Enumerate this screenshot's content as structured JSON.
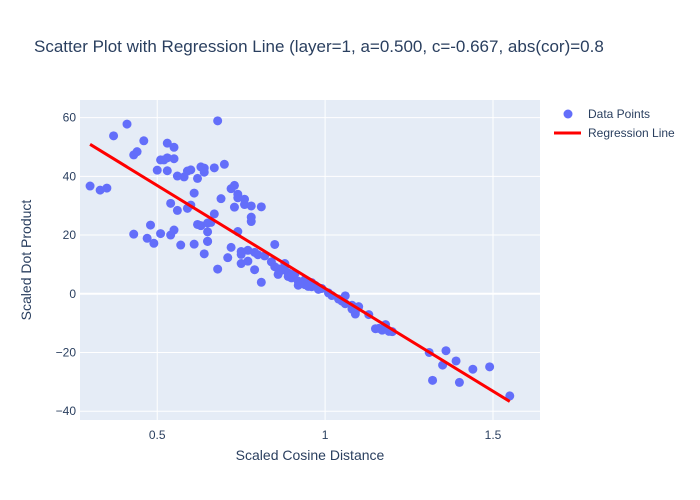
{
  "chart_data": {
    "type": "scatter",
    "title": "Scatter Plot with Regression Line (layer=1, a=0.500, c=-0.667, abs(cor)=0.8",
    "xlabel": "Scaled Cosine Distance",
    "ylabel": "Scaled Dot Product",
    "xlim": [
      0.27,
      1.64
    ],
    "ylim": [
      -43,
      66
    ],
    "xticks": [
      0.5,
      1,
      1.5
    ],
    "xtick_labels": [
      "0.5",
      "1",
      "1.5"
    ],
    "yticks": [
      -40,
      -20,
      0,
      20,
      40,
      60
    ],
    "ytick_labels": [
      "−40",
      "−20",
      "0",
      "20",
      "40",
      "60"
    ],
    "grid": true,
    "legend_position": "top-right",
    "colors": {
      "points": "#636efa",
      "line": "#ff0000",
      "plot_bg": "#e5ecf6",
      "grid": "#ffffff"
    },
    "series": [
      {
        "name": "Data Points",
        "mode": "markers",
        "points": [
          [
            0.3,
            36.7
          ],
          [
            0.33,
            35.3
          ],
          [
            0.35,
            36.0
          ],
          [
            0.37,
            53.8
          ],
          [
            0.41,
            57.8
          ],
          [
            0.43,
            47.3
          ],
          [
            0.43,
            20.3
          ],
          [
            0.44,
            48.4
          ],
          [
            0.46,
            52.1
          ],
          [
            0.47,
            18.9
          ],
          [
            0.48,
            23.4
          ],
          [
            0.49,
            17.2
          ],
          [
            0.5,
            42.1
          ],
          [
            0.51,
            45.6
          ],
          [
            0.51,
            20.5
          ],
          [
            0.52,
            45.6
          ],
          [
            0.53,
            51.3
          ],
          [
            0.53,
            46.3
          ],
          [
            0.53,
            41.9
          ],
          [
            0.54,
            30.8
          ],
          [
            0.54,
            20.0
          ],
          [
            0.55,
            21.7
          ],
          [
            0.55,
            46.0
          ],
          [
            0.55,
            49.9
          ],
          [
            0.56,
            40.1
          ],
          [
            0.56,
            28.4
          ],
          [
            0.57,
            16.6
          ],
          [
            0.58,
            39.8
          ],
          [
            0.59,
            41.8
          ],
          [
            0.59,
            29.1
          ],
          [
            0.6,
            30.2
          ],
          [
            0.6,
            42.2
          ],
          [
            0.61,
            34.3
          ],
          [
            0.61,
            16.9
          ],
          [
            0.62,
            39.3
          ],
          [
            0.62,
            23.6
          ],
          [
            0.63,
            43.2
          ],
          [
            0.63,
            23.2
          ],
          [
            0.64,
            41.4
          ],
          [
            0.64,
            42.8
          ],
          [
            0.64,
            13.6
          ],
          [
            0.65,
            17.8
          ],
          [
            0.65,
            17.9
          ],
          [
            0.65,
            21.1
          ],
          [
            0.65,
            24.1
          ],
          [
            0.66,
            24.3
          ],
          [
            0.67,
            27.2
          ],
          [
            0.67,
            42.9
          ],
          [
            0.68,
            58.9
          ],
          [
            0.68,
            8.4
          ],
          [
            0.69,
            32.4
          ],
          [
            0.7,
            44.1
          ],
          [
            0.71,
            12.3
          ],
          [
            0.72,
            35.8
          ],
          [
            0.72,
            15.8
          ],
          [
            0.73,
            36.9
          ],
          [
            0.73,
            29.5
          ],
          [
            0.74,
            33.9
          ],
          [
            0.74,
            32.7
          ],
          [
            0.74,
            21.2
          ],
          [
            0.75,
            13.4
          ],
          [
            0.75,
            10.3
          ],
          [
            0.75,
            14.4
          ],
          [
            0.76,
            32.2
          ],
          [
            0.76,
            30.4
          ],
          [
            0.77,
            14.8
          ],
          [
            0.77,
            11.1
          ],
          [
            0.78,
            26.1
          ],
          [
            0.78,
            24.6
          ],
          [
            0.78,
            29.9
          ],
          [
            0.79,
            14.1
          ],
          [
            0.79,
            8.2
          ],
          [
            0.8,
            13.3
          ],
          [
            0.81,
            29.6
          ],
          [
            0.81,
            3.9
          ],
          [
            0.82,
            12.9
          ],
          [
            0.84,
            10.9
          ],
          [
            0.85,
            16.8
          ],
          [
            0.85,
            9.2
          ],
          [
            0.86,
            6.6
          ],
          [
            0.86,
            8.5
          ],
          [
            0.87,
            8.0
          ],
          [
            0.88,
            9.4
          ],
          [
            0.88,
            10.3
          ],
          [
            0.89,
            5.9
          ],
          [
            0.89,
            7.1
          ],
          [
            0.9,
            5.4
          ],
          [
            0.9,
            6.5
          ],
          [
            0.91,
            6.8
          ],
          [
            0.92,
            2.9
          ],
          [
            0.92,
            4.3
          ],
          [
            0.93,
            3.6
          ],
          [
            0.94,
            4.8
          ],
          [
            0.94,
            3.1
          ],
          [
            0.95,
            2.5
          ],
          [
            0.96,
            3.8
          ],
          [
            0.96,
            2.4
          ],
          [
            0.97,
            2.9
          ],
          [
            0.98,
            1.5
          ],
          [
            0.99,
            1.8
          ],
          [
            1.01,
            0.3
          ],
          [
            1.02,
            -0.6
          ],
          [
            1.04,
            -1.8
          ],
          [
            1.05,
            -2.5
          ],
          [
            1.06,
            -0.7
          ],
          [
            1.06,
            -3.4
          ],
          [
            1.08,
            -3.9
          ],
          [
            1.08,
            -5.2
          ],
          [
            1.09,
            -6.1
          ],
          [
            1.09,
            -6.9
          ],
          [
            1.1,
            -4.4
          ],
          [
            1.13,
            -7.1
          ],
          [
            1.15,
            -11.9
          ],
          [
            1.16,
            -11.8
          ],
          [
            1.17,
            -12.4
          ],
          [
            1.18,
            -10.5
          ],
          [
            1.19,
            -12.8
          ],
          [
            1.2,
            -12.9
          ],
          [
            1.31,
            -20.0
          ],
          [
            1.32,
            -29.5
          ],
          [
            1.35,
            -24.3
          ],
          [
            1.36,
            -19.4
          ],
          [
            1.39,
            -22.9
          ],
          [
            1.4,
            -30.2
          ],
          [
            1.44,
            -25.7
          ],
          [
            1.49,
            -24.9
          ],
          [
            1.55,
            -34.8
          ]
        ]
      },
      {
        "name": "Regression Line",
        "mode": "lines",
        "x": [
          0.3,
          1.55
        ],
        "y": [
          50.9,
          -36.7
        ]
      }
    ]
  }
}
